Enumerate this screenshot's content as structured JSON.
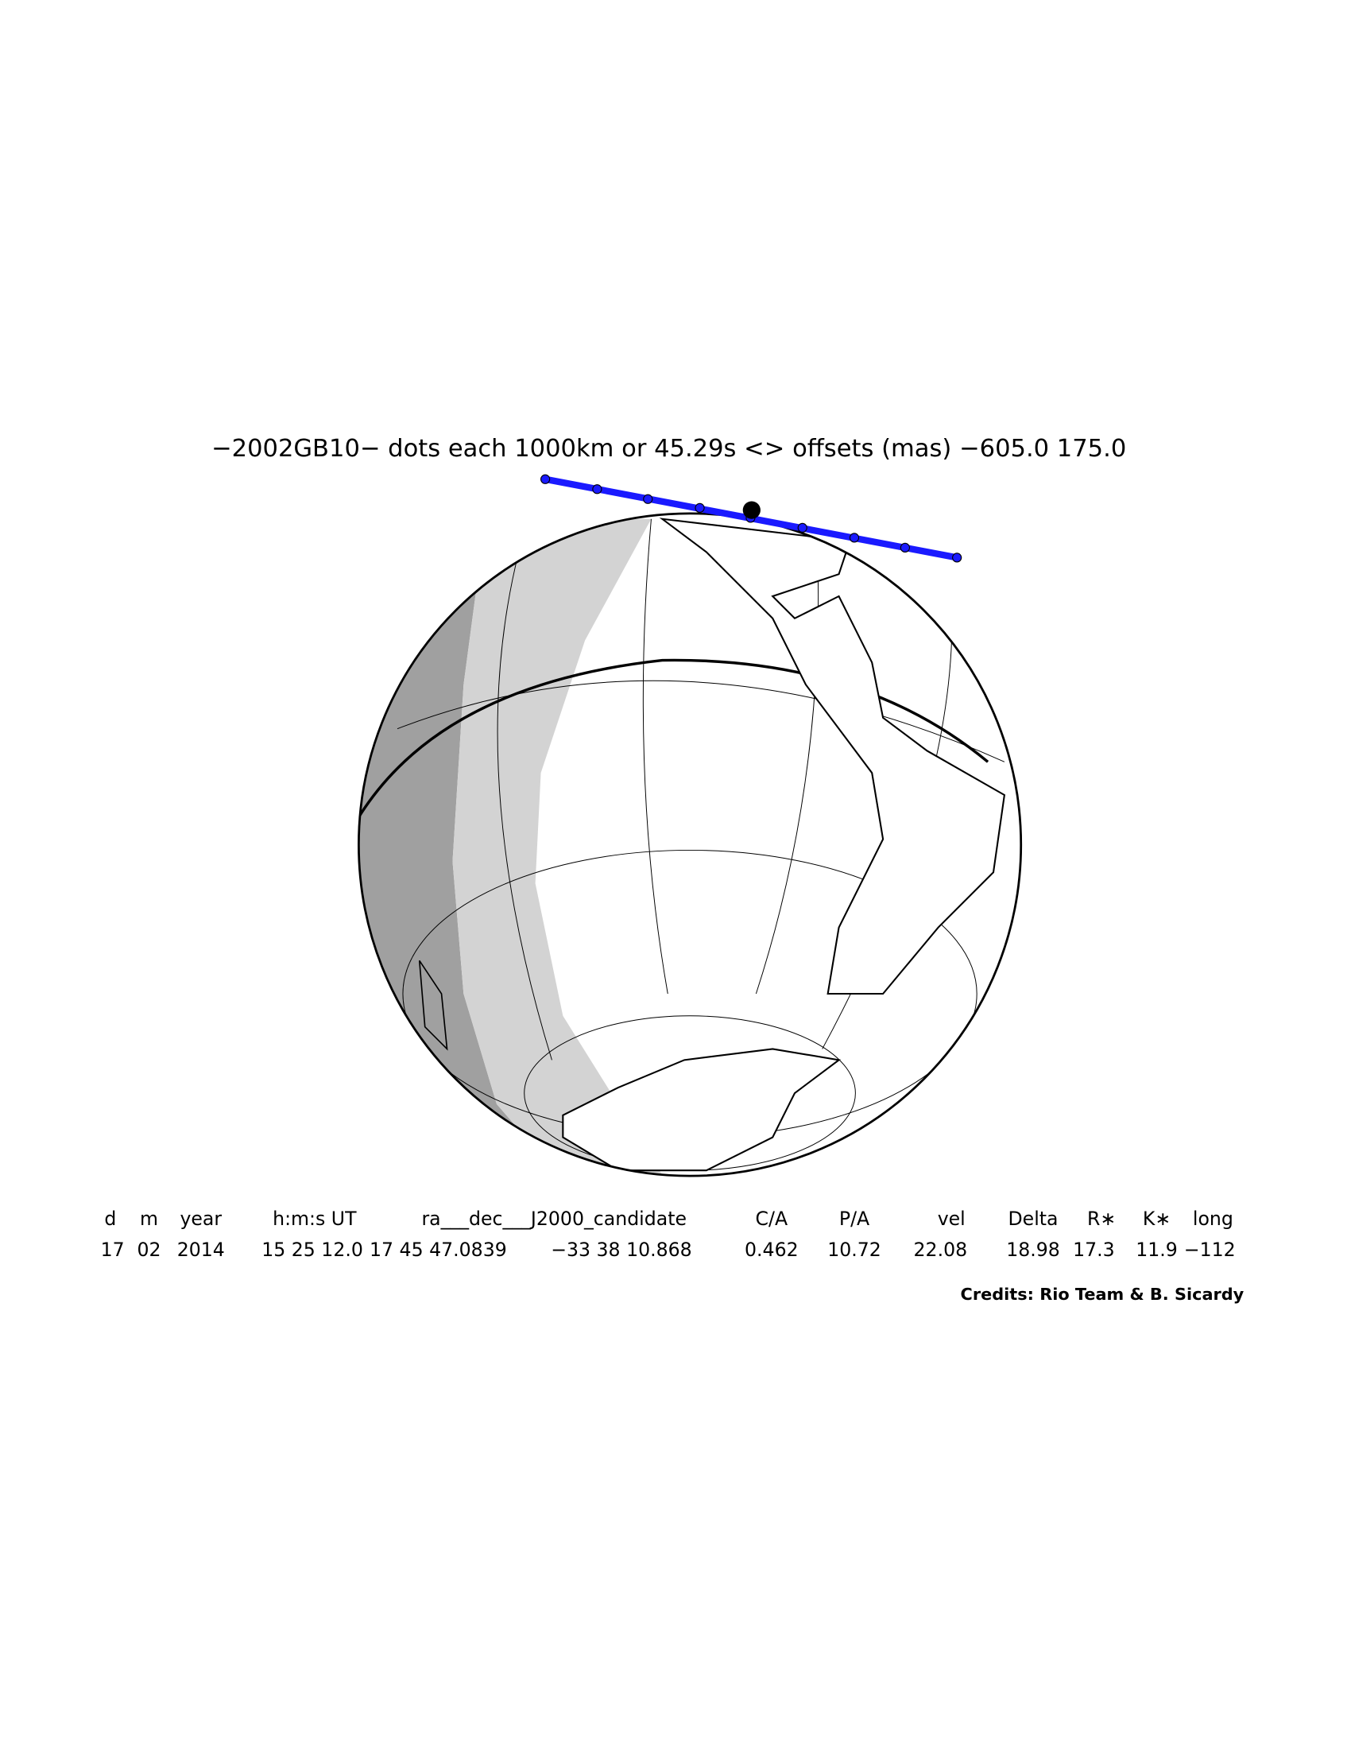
{
  "title": "−2002GB10− dots each 1000km or 45.29s <> offsets (mas) −605.0   175.0",
  "table": {
    "header": [
      "d",
      "m",
      "year",
      "h:m:s UT",
      "ra___dec___J2000_candidate",
      "C/A",
      "P/A",
      "vel",
      "Delta",
      "R∗",
      "K∗",
      "long"
    ],
    "values": [
      "17",
      "02",
      "2014",
      "15 25 12.0",
      "17 45 47.0839",
      "−33 38 10.868",
      "0.462",
      "10.72",
      "22.08",
      "18.98",
      "17.3",
      "11.9",
      "−112"
    ]
  },
  "credits": "Credits: Rio Team & B. Sicardy"
}
